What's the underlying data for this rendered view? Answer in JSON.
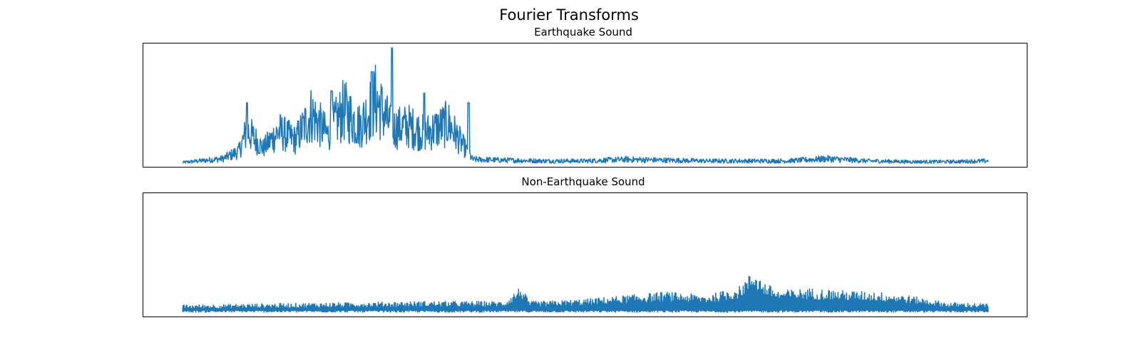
{
  "figure": {
    "title": "Fourier Transforms"
  },
  "chart_data": [
    {
      "type": "line",
      "title": "Earthquake Sound",
      "xlabel": "",
      "ylabel": "",
      "axis_ticks": "hidden",
      "grid": false,
      "ylim": [
        0,
        1
      ],
      "series": [
        {
          "color": "#1f77b4",
          "x": [
            0.0,
            0.05,
            0.07,
            0.08,
            0.1,
            0.12,
            0.14,
            0.16,
            0.18,
            0.2,
            0.22,
            0.24,
            0.26,
            0.28,
            0.3,
            0.33,
            0.36,
            0.4,
            0.45,
            0.5,
            0.55,
            0.6,
            0.65,
            0.7,
            0.75,
            0.8,
            0.85,
            0.9,
            0.95,
            1.0
          ],
          "y": [
            0.03,
            0.08,
            0.18,
            0.46,
            0.22,
            0.45,
            0.33,
            0.68,
            0.4,
            0.73,
            0.52,
            0.87,
            0.48,
            0.52,
            0.42,
            0.55,
            0.07,
            0.06,
            0.05,
            0.05,
            0.07,
            0.06,
            0.05,
            0.05,
            0.05,
            0.08,
            0.05,
            0.04,
            0.04,
            0.05
          ],
          "spike_x": [
            0.08,
            0.185,
            0.235,
            0.26,
            0.3,
            0.355
          ],
          "spike_y": [
            0.52,
            0.62,
            0.78,
            0.98,
            0.6,
            0.52
          ]
        }
      ]
    },
    {
      "type": "line",
      "title": "Non-Earthquake Sound",
      "xlabel": "",
      "ylabel": "",
      "axis_ticks": "hidden",
      "grid": false,
      "ylim": [
        0,
        1
      ],
      "series": [
        {
          "color": "#1f77b4",
          "x": [
            0.0,
            0.1,
            0.2,
            0.3,
            0.4,
            0.42,
            0.43,
            0.45,
            0.5,
            0.55,
            0.6,
            0.65,
            0.69,
            0.71,
            0.72,
            0.74,
            0.78,
            0.82,
            0.86,
            0.9,
            0.95,
            1.0
          ],
          "y": [
            0.08,
            0.09,
            0.1,
            0.11,
            0.11,
            0.24,
            0.11,
            0.11,
            0.13,
            0.16,
            0.19,
            0.16,
            0.23,
            0.38,
            0.28,
            0.2,
            0.22,
            0.2,
            0.19,
            0.16,
            0.1,
            0.09
          ],
          "floor": 0.03
        }
      ]
    }
  ]
}
